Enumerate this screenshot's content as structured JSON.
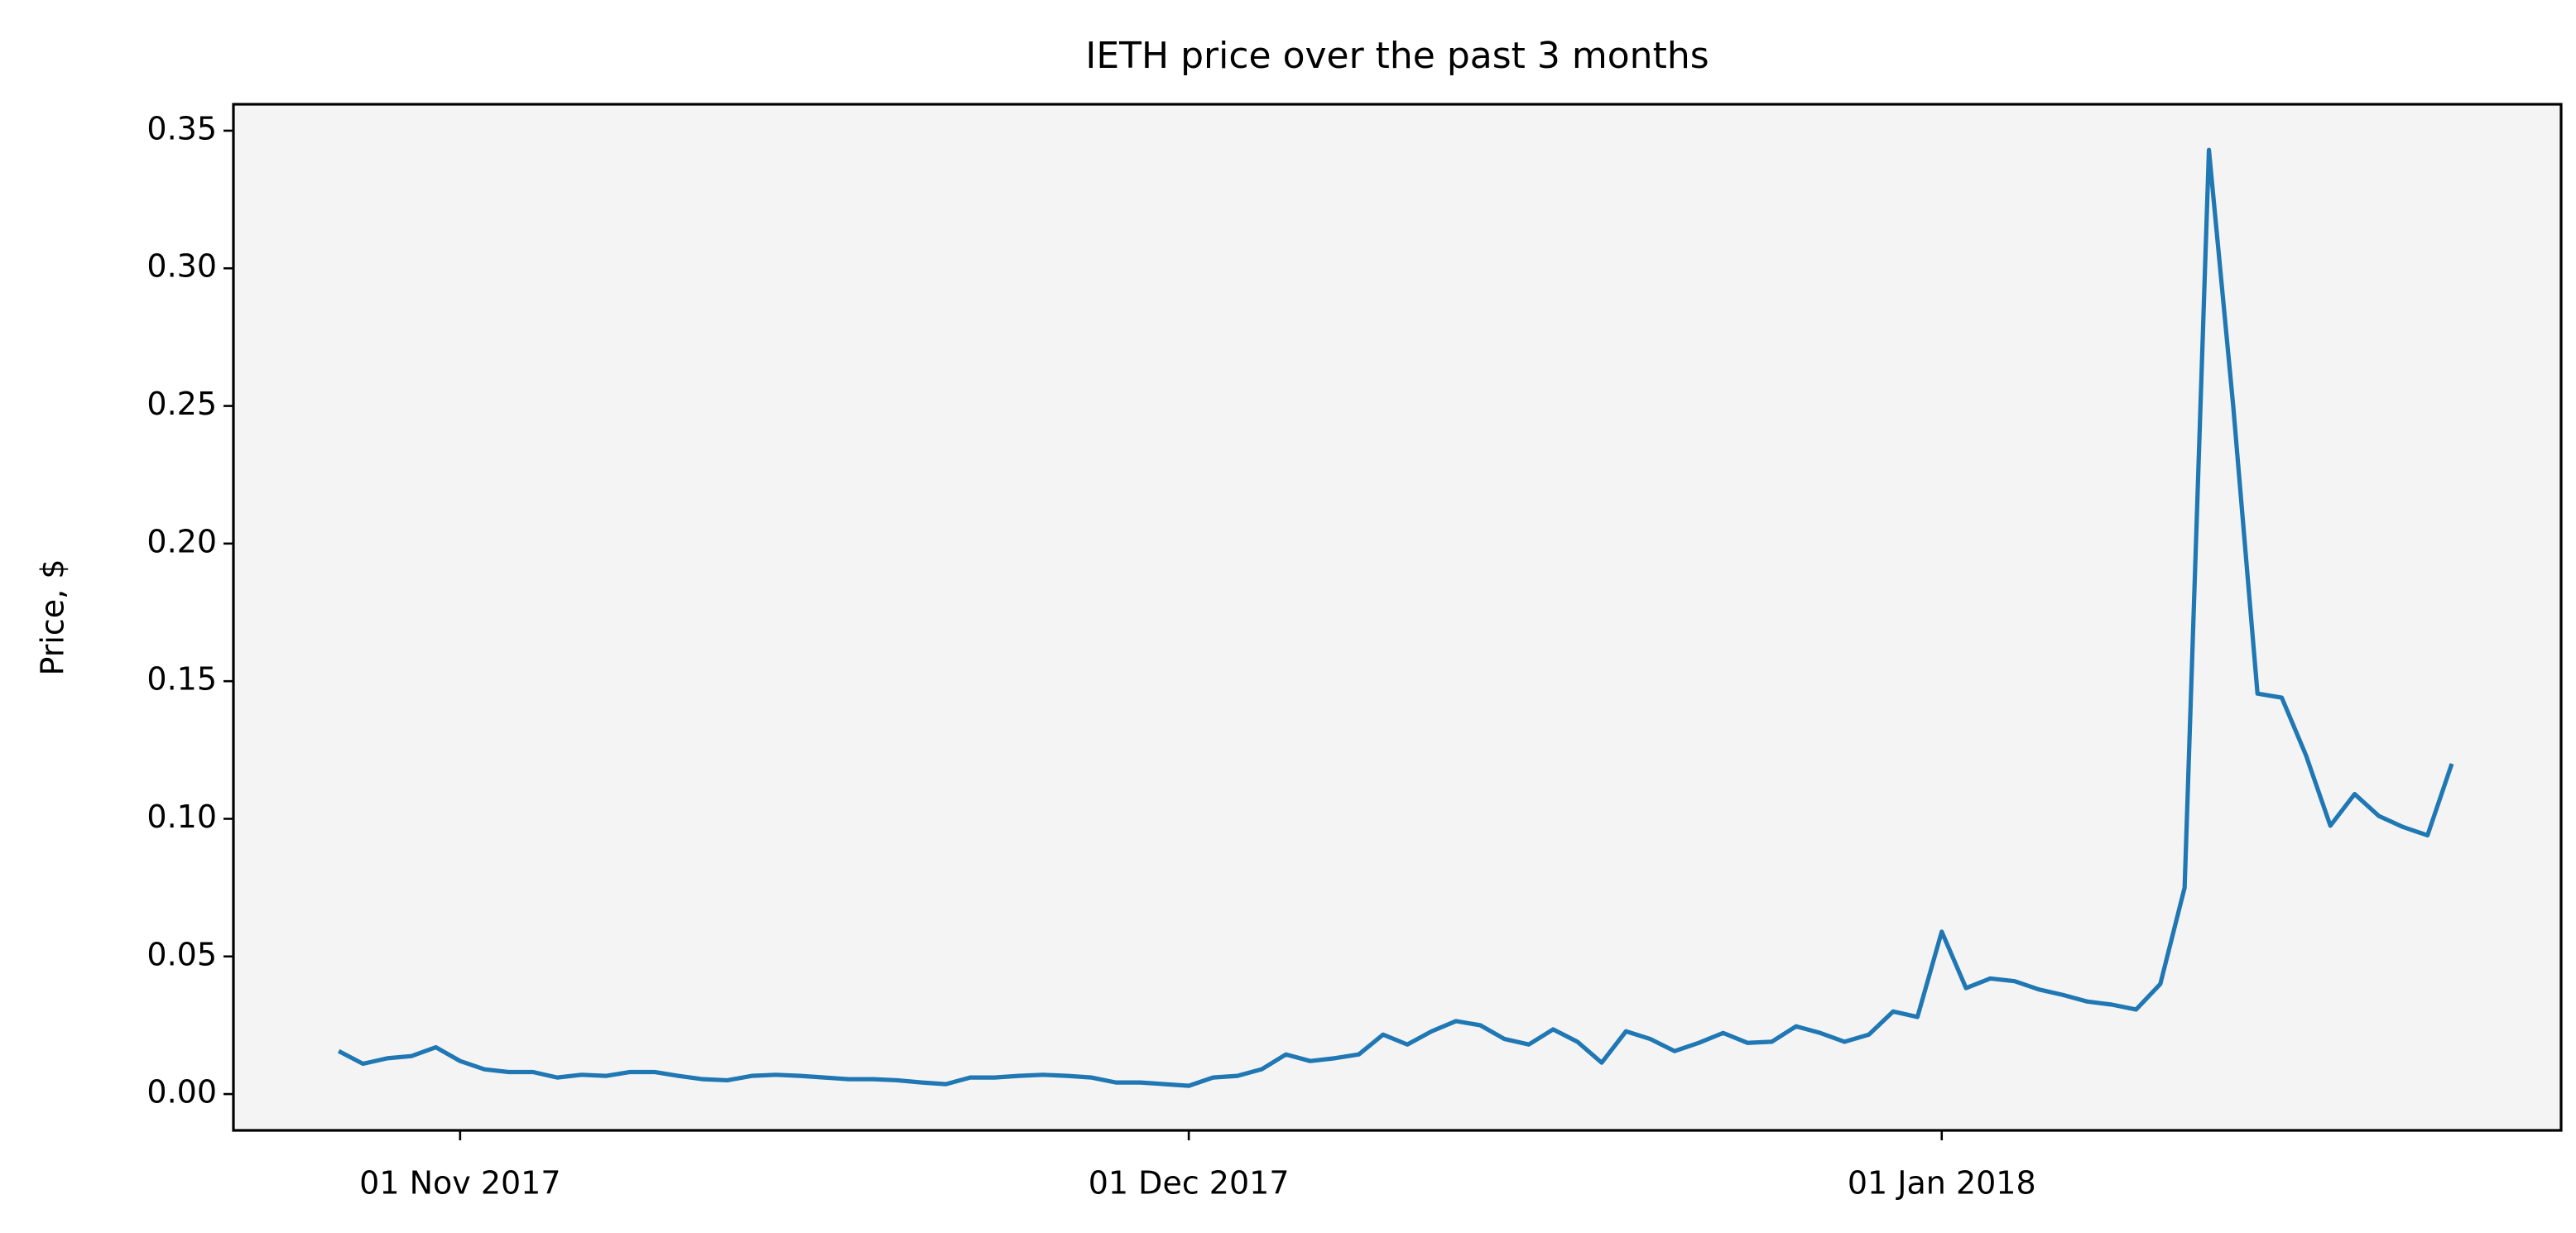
{
  "chart_data": {
    "type": "line",
    "title": "IETH price over the past 3 months",
    "y_label": "Price, $",
    "x": [
      "2017-10-27",
      "2017-10-28",
      "2017-10-29",
      "2017-10-30",
      "2017-10-31",
      "2017-11-01",
      "2017-11-02",
      "2017-11-03",
      "2017-11-04",
      "2017-11-05",
      "2017-11-06",
      "2017-11-07",
      "2017-11-08",
      "2017-11-09",
      "2017-11-10",
      "2017-11-11",
      "2017-11-12",
      "2017-11-13",
      "2017-11-14",
      "2017-11-15",
      "2017-11-16",
      "2017-11-17",
      "2017-11-18",
      "2017-11-19",
      "2017-11-20",
      "2017-11-21",
      "2017-11-22",
      "2017-11-23",
      "2017-11-24",
      "2017-11-25",
      "2017-11-26",
      "2017-11-27",
      "2017-11-28",
      "2017-11-29",
      "2017-11-30",
      "2017-12-01",
      "2017-12-02",
      "2017-12-03",
      "2017-12-04",
      "2017-12-05",
      "2017-12-06",
      "2017-12-07",
      "2017-12-08",
      "2017-12-09",
      "2017-12-10",
      "2017-12-11",
      "2017-12-12",
      "2017-12-13",
      "2017-12-14",
      "2017-12-15",
      "2017-12-16",
      "2017-12-17",
      "2017-12-18",
      "2017-12-19",
      "2017-12-20",
      "2017-12-21",
      "2017-12-22",
      "2017-12-23",
      "2017-12-24",
      "2017-12-25",
      "2017-12-26",
      "2017-12-27",
      "2017-12-28",
      "2017-12-29",
      "2017-12-30",
      "2017-12-31",
      "2018-01-01",
      "2018-01-02",
      "2018-01-03",
      "2018-01-04",
      "2018-01-05",
      "2018-01-06",
      "2018-01-07",
      "2018-01-08",
      "2018-01-09",
      "2018-01-10",
      "2018-01-11",
      "2018-01-12",
      "2018-01-13",
      "2018-01-14",
      "2018-01-15",
      "2018-01-16",
      "2018-01-17",
      "2018-01-18",
      "2018-01-19",
      "2018-01-20",
      "2018-01-21",
      "2018-01-22"
    ],
    "series": [
      {
        "color": "#1f77b4",
        "values": [
          0.0156,
          0.011,
          0.013,
          0.0138,
          0.017,
          0.012,
          0.009,
          0.008,
          0.008,
          0.006,
          0.007,
          0.0066,
          0.008,
          0.008,
          0.0066,
          0.0054,
          0.005,
          0.0066,
          0.007,
          0.0066,
          0.006,
          0.0054,
          0.0054,
          0.005,
          0.0042,
          0.0036,
          0.006,
          0.006,
          0.0066,
          0.007,
          0.0066,
          0.006,
          0.0042,
          0.0042,
          0.0036,
          0.003,
          0.006,
          0.0066,
          0.009,
          0.0144,
          0.012,
          0.013,
          0.0144,
          0.0216,
          0.018,
          0.0228,
          0.0265,
          0.025,
          0.02,
          0.018,
          0.0235,
          0.019,
          0.0114,
          0.0228,
          0.02,
          0.0156,
          0.0186,
          0.0222,
          0.0186,
          0.019,
          0.0246,
          0.0222,
          0.019,
          0.0216,
          0.03,
          0.028,
          0.059,
          0.0385,
          0.042,
          0.041,
          0.038,
          0.036,
          0.0336,
          0.0325,
          0.0307,
          0.04,
          0.075,
          0.343,
          0.25,
          0.1455,
          0.144,
          0.123,
          0.0975,
          0.109,
          0.101,
          0.097,
          0.094,
          0.12
        ]
      }
    ],
    "xlim": [
      "2017-10-22T16:00Z",
      "2018-01-26T12:00Z"
    ],
    "xticks": [
      {
        "value": "2017-11-01",
        "label": "01 Nov 2017"
      },
      {
        "value": "2017-12-01",
        "label": "01 Dec 2017"
      },
      {
        "value": "2018-01-01",
        "label": "01 Jan 2018"
      }
    ],
    "ylim": [
      -0.0132,
      0.3596
    ],
    "yticks": [
      {
        "value": 0,
        "label": "0.00"
      },
      {
        "value": 0.05,
        "label": "0.05"
      },
      {
        "value": 0.1,
        "label": "0.10"
      },
      {
        "value": 0.15,
        "label": "0.15"
      },
      {
        "value": 0.2,
        "label": "0.20"
      },
      {
        "value": 0.25,
        "label": "0.25"
      },
      {
        "value": 0.3,
        "label": "0.30"
      },
      {
        "value": 0.35,
        "label": "0.35"
      }
    ],
    "background": "#f4f4f4"
  }
}
